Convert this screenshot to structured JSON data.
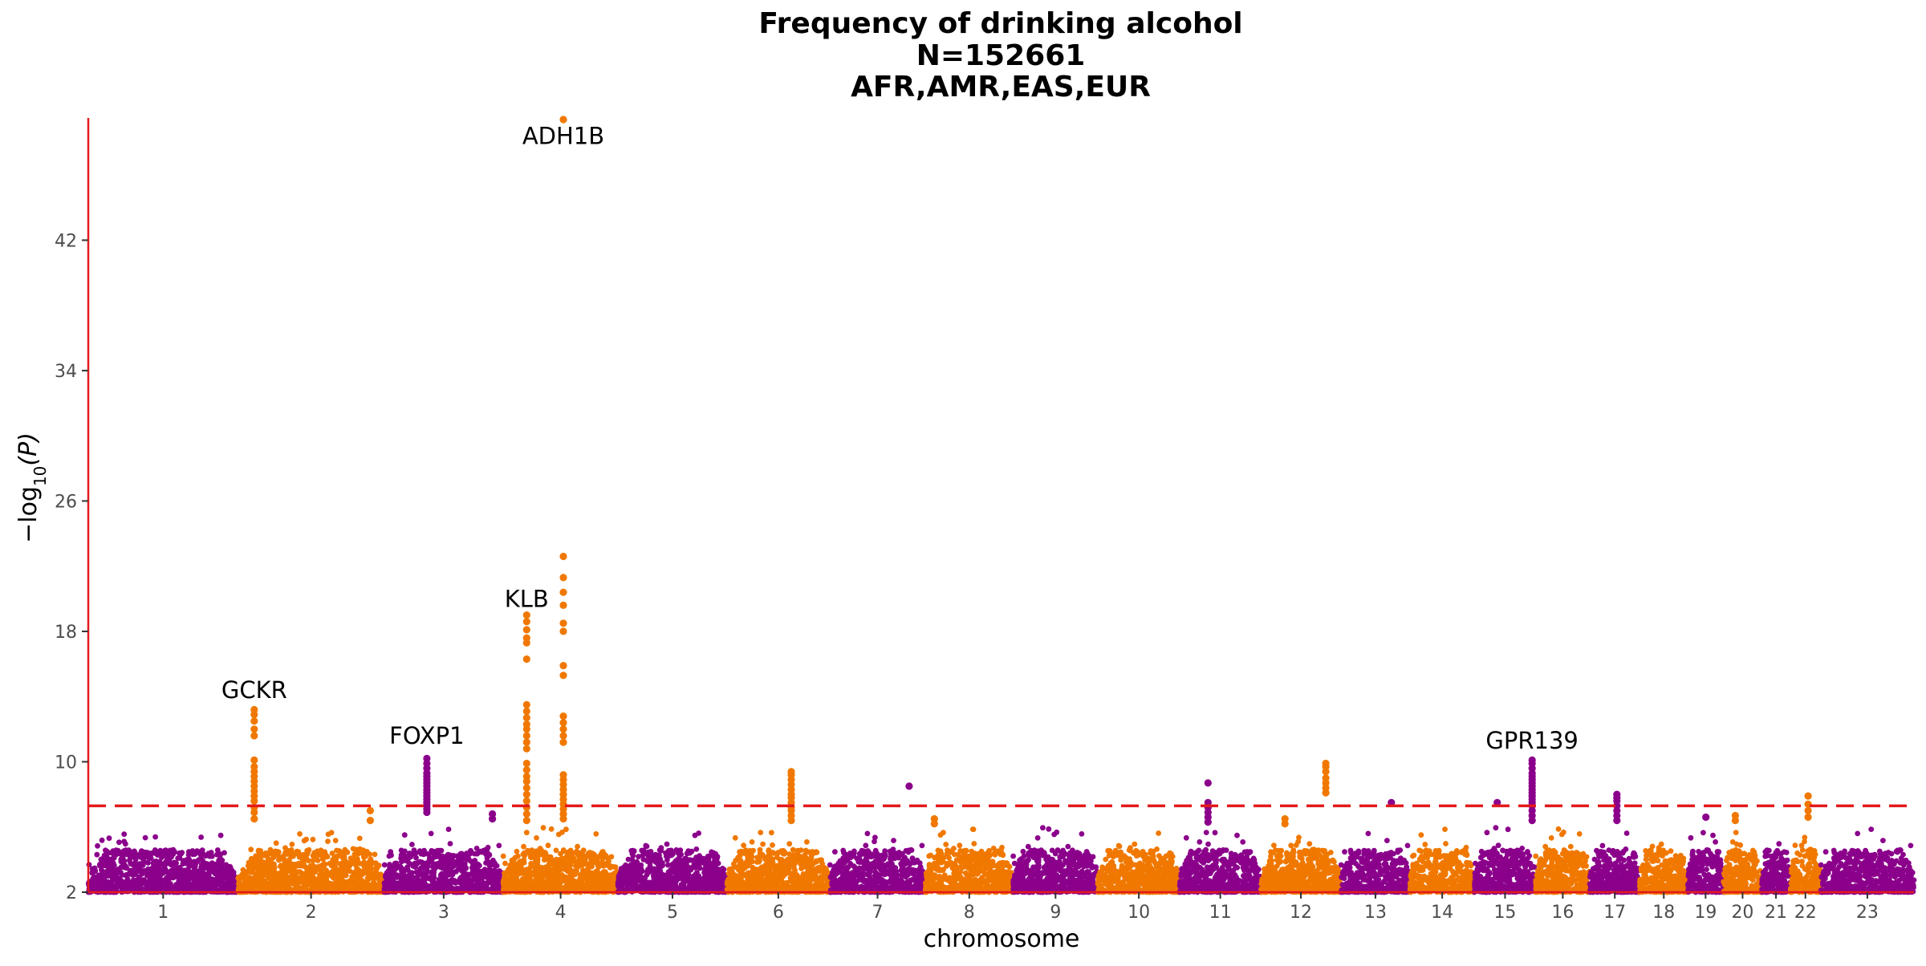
{
  "chart_data": {
    "type": "scatter",
    "title_lines": [
      "Frequency of drinking alcohol",
      "N=152661",
      "AFR,AMR,EAS,EUR"
    ],
    "xlabel": "chromosome",
    "ylabel": "−log₁₀(P)",
    "ylabel_parts": {
      "prefix": "−log",
      "subscript": "10",
      "suffix": "(P)"
    },
    "ylim": [
      2,
      49.5
    ],
    "y_ticks": [
      2,
      10,
      18,
      26,
      34,
      42
    ],
    "y_tick_labels": [
      "2",
      "10",
      "18",
      "26",
      "34",
      "42"
    ],
    "significance_threshold": 7.3,
    "colors": {
      "odd": "#8b008b",
      "even": "#f07800",
      "threshold": "#e31a1c",
      "axis": "#e31a1c"
    },
    "chromosomes": [
      {
        "label": "1",
        "length": 249
      },
      {
        "label": "2",
        "length": 243
      },
      {
        "label": "3",
        "length": 198
      },
      {
        "label": "4",
        "length": 191
      },
      {
        "label": "5",
        "length": 181
      },
      {
        "label": "6",
        "length": 171
      },
      {
        "label": "7",
        "length": 159
      },
      {
        "label": "8",
        "length": 146
      },
      {
        "label": "9",
        "length": 141
      },
      {
        "label": "10",
        "length": 136
      },
      {
        "label": "11",
        "length": 135
      },
      {
        "label": "12",
        "length": 133
      },
      {
        "label": "13",
        "length": 115
      },
      {
        "label": "14",
        "length": 107
      },
      {
        "label": "15",
        "length": 102
      },
      {
        "label": "16",
        "length": 90
      },
      {
        "label": "17",
        "length": 83
      },
      {
        "label": "18",
        "length": 80
      },
      {
        "label": "19",
        "length": 59
      },
      {
        "label": "20",
        "length": 64
      },
      {
        "label": "21",
        "length": 47
      },
      {
        "label": "22",
        "length": 51
      },
      {
        "label": "23",
        "length": 155
      }
    ],
    "peaks": [
      {
        "chrom": "2",
        "pos": 27,
        "values": [
          13.2,
          12.9,
          12.5,
          12.0,
          11.6,
          10.1,
          9.7,
          9.4,
          9.1,
          8.8,
          8.5,
          8.2,
          7.9,
          7.6,
          7.2,
          6.9,
          6.5
        ]
      },
      {
        "chrom": "2",
        "pos": 220,
        "values": [
          7.0,
          6.4
        ]
      },
      {
        "chrom": "3",
        "pos": 71,
        "values": [
          10.2,
          9.9,
          9.6,
          9.3,
          9.1,
          8.9,
          8.7,
          8.5,
          8.3,
          8.1,
          7.9,
          7.7,
          7.5,
          7.3,
          7.1,
          6.9
        ]
      },
      {
        "chrom": "3",
        "pos": 180,
        "values": [
          6.8,
          6.5
        ]
      },
      {
        "chrom": "4",
        "pos": 39,
        "values": [
          19.0,
          18.6,
          18.1,
          17.6,
          17.3,
          16.3,
          13.5,
          13.1,
          12.7,
          12.3,
          12.0,
          11.6,
          11.2,
          10.8,
          9.9,
          9.5,
          9.1,
          8.8,
          8.4,
          8.0,
          7.6,
          7.2,
          6.8,
          6.4
        ]
      },
      {
        "chrom": "4",
        "pos": 100,
        "values": [
          49.4,
          22.6,
          21.3,
          20.4,
          19.6,
          18.5,
          18.0,
          15.9,
          15.3,
          12.8,
          12.4,
          12.0,
          11.6,
          11.2,
          9.2,
          8.9,
          8.6,
          8.3,
          8.0,
          7.7,
          7.4,
          7.1,
          6.8,
          6.5
        ]
      },
      {
        "chrom": "6",
        "pos": 107,
        "values": [
          9.4,
          9.2,
          8.9,
          8.6,
          8.3,
          8.0,
          7.8,
          7.5,
          7.2,
          7.0,
          6.7,
          6.4
        ]
      },
      {
        "chrom": "7",
        "pos": 132,
        "values": [
          8.5
        ]
      },
      {
        "chrom": "8",
        "pos": 15,
        "values": [
          6.5,
          6.2
        ]
      },
      {
        "chrom": "11",
        "pos": 47,
        "values": [
          8.7,
          7.5,
          7.2,
          6.9,
          6.6,
          6.3
        ]
      },
      {
        "chrom": "12",
        "pos": 108,
        "values": [
          9.9,
          9.7,
          9.4,
          9.0,
          8.7,
          8.4,
          8.1
        ]
      },
      {
        "chrom": "12",
        "pos": 40,
        "values": [
          6.5,
          6.2
        ]
      },
      {
        "chrom": "13",
        "pos": 84,
        "values": [
          7.5
        ]
      },
      {
        "chrom": "15",
        "pos": 38,
        "values": [
          7.5
        ]
      },
      {
        "chrom": "15",
        "pos": 96,
        "values": [
          10.1,
          9.9,
          9.6,
          9.3,
          9.1,
          8.9,
          8.7,
          8.5,
          8.3,
          8.1,
          7.9,
          7.7,
          7.5,
          7.3,
          7.0,
          6.7,
          6.4
        ]
      },
      {
        "chrom": "17",
        "pos": 45,
        "values": [
          8.0,
          7.8,
          7.6,
          7.3,
          7.0,
          6.7,
          6.4
        ]
      },
      {
        "chrom": "19",
        "pos": 30,
        "values": [
          6.6
        ]
      },
      {
        "chrom": "20",
        "pos": 20,
        "values": [
          6.7,
          6.4
        ]
      },
      {
        "chrom": "22",
        "pos": 30,
        "values": [
          7.9,
          7.4,
          7.0,
          6.6
        ]
      }
    ],
    "annotations": [
      {
        "text": "ADH1B",
        "chrom": "4",
        "pos": 100,
        "y": 47.9
      },
      {
        "text": "KLB",
        "chrom": "4",
        "pos": 39,
        "y": 19.5
      },
      {
        "text": "GCKR",
        "chrom": "2",
        "pos": 27,
        "y": 13.9
      },
      {
        "text": "FOXP1",
        "chrom": "3",
        "pos": 71,
        "y": 11.1
      },
      {
        "text": "GPR139",
        "chrom": "15",
        "pos": 96,
        "y": 10.8
      }
    ],
    "grid": false,
    "legend": "none"
  }
}
